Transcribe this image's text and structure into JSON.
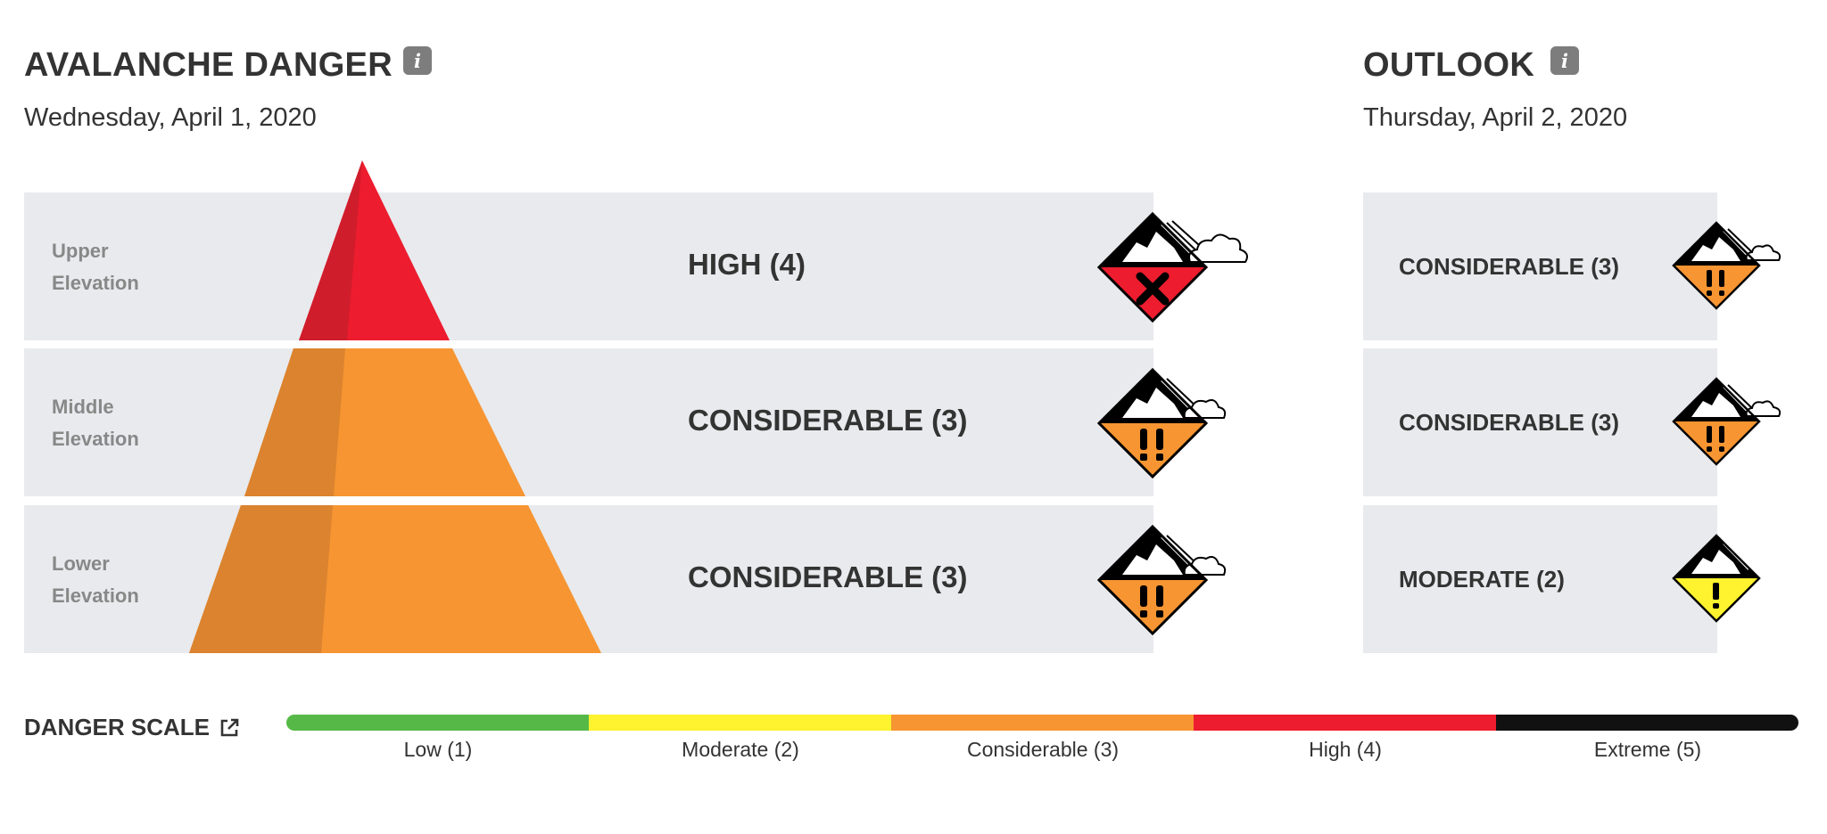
{
  "danger": {
    "title": "AVALANCHE DANGER",
    "date": "Wednesday, April 1, 2020",
    "rows": [
      {
        "label_line1": "Upper",
        "label_line2": "Elevation",
        "rating": "HIGH (4)",
        "level": 4
      },
      {
        "label_line1": "Middle",
        "label_line2": "Elevation",
        "rating": "CONSIDERABLE (3)",
        "level": 3
      },
      {
        "label_line1": "Lower",
        "label_line2": "Elevation",
        "rating": "CONSIDERABLE (3)",
        "level": 3
      }
    ]
  },
  "outlook": {
    "title": "OUTLOOK",
    "date": "Thursday, April 2, 2020",
    "rows": [
      {
        "rating": "CONSIDERABLE (3)",
        "level": 3
      },
      {
        "rating": "CONSIDERABLE (3)",
        "level": 3
      },
      {
        "rating": "MODERATE (2)",
        "level": 2
      }
    ]
  },
  "scale": {
    "title": "DANGER SCALE",
    "levels": [
      {
        "label": "Low (1)",
        "color": "#56b947"
      },
      {
        "label": "Moderate (2)",
        "color": "#fff22e"
      },
      {
        "label": "Considerable (3)",
        "color": "#f69532"
      },
      {
        "label": "High (4)",
        "color": "#ed1c2e"
      },
      {
        "label": "Extreme (5)",
        "color": "#111111"
      }
    ]
  },
  "icons": {
    "info": "info-icon",
    "external_link": "external-link-icon",
    "danger_badge": "avalanche-danger-icon"
  },
  "colors": {
    "high": "#ed1c2e",
    "high_shade": "#d01d2c",
    "considerable": "#f69532",
    "considerable_shade": "#db832e",
    "moderate": "#fff22e",
    "band": "#e8eaed"
  }
}
